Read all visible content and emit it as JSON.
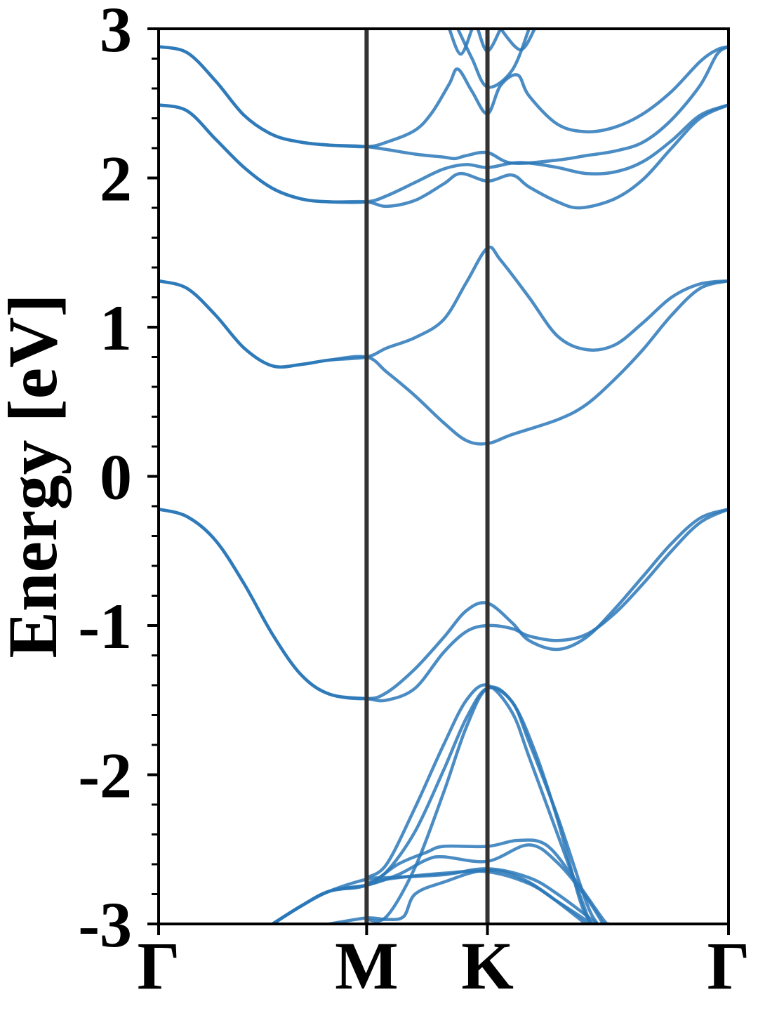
{
  "chart_data": {
    "type": "line",
    "title": "",
    "xlabel": "",
    "ylabel": "Energy [eV]",
    "ylim": [
      -3,
      3
    ],
    "yticks": [
      -3,
      -2,
      -1,
      0,
      1,
      2,
      3
    ],
    "ytick_labels": [
      "-3",
      "-2",
      "-1",
      "0",
      "1",
      "2",
      "3"
    ],
    "yminor_step": 0.2,
    "xlim": [
      0,
      1
    ],
    "kpath": [
      {
        "label": "Γ",
        "x": 0.0
      },
      {
        "label": "M",
        "x": 0.365
      },
      {
        "label": "K",
        "x": 0.577
      },
      {
        "label": "Γ",
        "x": 1.0
      }
    ],
    "grid": false,
    "legend": "none",
    "colors": {
      "bands": "#2a78b8",
      "kpoint_lines": "#333333",
      "axes": "#000000"
    },
    "series": [
      {
        "values": [
          [
            0.0,
            2.88
          ],
          [
            0.05,
            2.84
          ],
          [
            0.1,
            2.65
          ],
          [
            0.15,
            2.42
          ],
          [
            0.2,
            2.29
          ],
          [
            0.25,
            2.24
          ],
          [
            0.3,
            2.22
          ],
          [
            0.365,
            2.21
          ],
          [
            0.45,
            2.16
          ],
          [
            0.5,
            2.14
          ],
          [
            0.52,
            2.13
          ],
          [
            0.54,
            2.15
          ],
          [
            0.577,
            2.17
          ],
          [
            0.62,
            2.1
          ],
          [
            0.7,
            2.12
          ],
          [
            0.75,
            2.15
          ],
          [
            0.8,
            2.18
          ],
          [
            0.85,
            2.24
          ],
          [
            0.9,
            2.39
          ],
          [
            0.95,
            2.62
          ],
          [
            0.98,
            2.83
          ],
          [
            1.0,
            2.88
          ]
        ]
      },
      {
        "values": [
          [
            0.0,
            2.88
          ],
          [
            0.05,
            2.84
          ],
          [
            0.1,
            2.65
          ],
          [
            0.15,
            2.42
          ],
          [
            0.2,
            2.29
          ],
          [
            0.25,
            2.24
          ],
          [
            0.3,
            2.22
          ],
          [
            0.365,
            2.21
          ],
          [
            0.4,
            2.24
          ],
          [
            0.45,
            2.32
          ],
          [
            0.48,
            2.44
          ],
          [
            0.51,
            2.63
          ],
          [
            0.525,
            2.73
          ],
          [
            0.55,
            2.58
          ],
          [
            0.577,
            2.43
          ],
          [
            0.6,
            2.62
          ],
          [
            0.63,
            2.69
          ],
          [
            0.65,
            2.55
          ],
          [
            0.7,
            2.36
          ],
          [
            0.75,
            2.31
          ],
          [
            0.8,
            2.34
          ],
          [
            0.85,
            2.43
          ],
          [
            0.9,
            2.58
          ],
          [
            0.95,
            2.78
          ],
          [
            0.98,
            2.86
          ],
          [
            1.0,
            2.88
          ]
        ]
      },
      {
        "values": [
          [
            0.0,
            2.49
          ],
          [
            0.05,
            2.45
          ],
          [
            0.1,
            2.26
          ],
          [
            0.15,
            2.07
          ],
          [
            0.2,
            1.93
          ],
          [
            0.25,
            1.86
          ],
          [
            0.3,
            1.84
          ],
          [
            0.365,
            1.84
          ],
          [
            0.4,
            1.88
          ],
          [
            0.45,
            1.97
          ],
          [
            0.5,
            2.06
          ],
          [
            0.54,
            2.09
          ],
          [
            0.577,
            2.07
          ],
          [
            0.62,
            2.1
          ],
          [
            0.65,
            2.1
          ],
          [
            0.7,
            2.07
          ],
          [
            0.75,
            2.03
          ],
          [
            0.8,
            2.04
          ],
          [
            0.85,
            2.11
          ],
          [
            0.9,
            2.25
          ],
          [
            0.95,
            2.42
          ],
          [
            1.0,
            2.49
          ]
        ]
      },
      {
        "values": [
          [
            0.0,
            2.49
          ],
          [
            0.05,
            2.45
          ],
          [
            0.1,
            2.26
          ],
          [
            0.15,
            2.07
          ],
          [
            0.2,
            1.93
          ],
          [
            0.25,
            1.86
          ],
          [
            0.3,
            1.84
          ],
          [
            0.365,
            1.84
          ],
          [
            0.4,
            1.81
          ],
          [
            0.45,
            1.85
          ],
          [
            0.5,
            1.96
          ],
          [
            0.53,
            2.03
          ],
          [
            0.577,
            1.98
          ],
          [
            0.62,
            2.02
          ],
          [
            0.65,
            1.94
          ],
          [
            0.7,
            1.84
          ],
          [
            0.74,
            1.8
          ],
          [
            0.8,
            1.86
          ],
          [
            0.85,
            1.99
          ],
          [
            0.9,
            2.2
          ],
          [
            0.95,
            2.4
          ],
          [
            1.0,
            2.49
          ]
        ]
      },
      {
        "values": [
          [
            0.0,
            1.31
          ],
          [
            0.05,
            1.26
          ],
          [
            0.1,
            1.08
          ],
          [
            0.15,
            0.86
          ],
          [
            0.2,
            0.74
          ],
          [
            0.25,
            0.75
          ],
          [
            0.3,
            0.78
          ],
          [
            0.365,
            0.8
          ],
          [
            0.4,
            0.86
          ],
          [
            0.45,
            0.93
          ],
          [
            0.5,
            1.05
          ],
          [
            0.54,
            1.3
          ],
          [
            0.577,
            1.53
          ],
          [
            0.6,
            1.45
          ],
          [
            0.65,
            1.2
          ],
          [
            0.7,
            0.94
          ],
          [
            0.75,
            0.85
          ],
          [
            0.8,
            0.88
          ],
          [
            0.85,
            1.03
          ],
          [
            0.9,
            1.2
          ],
          [
            0.95,
            1.29
          ],
          [
            1.0,
            1.31
          ]
        ]
      },
      {
        "values": [
          [
            0.0,
            1.31
          ],
          [
            0.05,
            1.26
          ],
          [
            0.1,
            1.08
          ],
          [
            0.15,
            0.86
          ],
          [
            0.2,
            0.74
          ],
          [
            0.25,
            0.75
          ],
          [
            0.3,
            0.78
          ],
          [
            0.365,
            0.8
          ],
          [
            0.4,
            0.7
          ],
          [
            0.45,
            0.54
          ],
          [
            0.5,
            0.36
          ],
          [
            0.54,
            0.24
          ],
          [
            0.577,
            0.22
          ],
          [
            0.62,
            0.28
          ],
          [
            0.7,
            0.38
          ],
          [
            0.75,
            0.48
          ],
          [
            0.8,
            0.65
          ],
          [
            0.85,
            0.85
          ],
          [
            0.9,
            1.08
          ],
          [
            0.95,
            1.26
          ],
          [
            1.0,
            1.31
          ]
        ]
      },
      {
        "values": [
          [
            0.0,
            -0.22
          ],
          [
            0.05,
            -0.27
          ],
          [
            0.1,
            -0.43
          ],
          [
            0.15,
            -0.72
          ],
          [
            0.2,
            -1.06
          ],
          [
            0.25,
            -1.33
          ],
          [
            0.3,
            -1.46
          ],
          [
            0.365,
            -1.49
          ],
          [
            0.4,
            -1.45
          ],
          [
            0.45,
            -1.29
          ],
          [
            0.5,
            -1.08
          ],
          [
            0.54,
            -0.9
          ],
          [
            0.577,
            -0.85
          ],
          [
            0.62,
            -0.98
          ],
          [
            0.65,
            -1.1
          ],
          [
            0.7,
            -1.16
          ],
          [
            0.75,
            -1.08
          ],
          [
            0.8,
            -0.89
          ],
          [
            0.85,
            -0.67
          ],
          [
            0.9,
            -0.45
          ],
          [
            0.95,
            -0.28
          ],
          [
            1.0,
            -0.22
          ]
        ]
      },
      {
        "values": [
          [
            0.0,
            -0.22
          ],
          [
            0.05,
            -0.27
          ],
          [
            0.1,
            -0.43
          ],
          [
            0.15,
            -0.72
          ],
          [
            0.2,
            -1.06
          ],
          [
            0.25,
            -1.33
          ],
          [
            0.3,
            -1.46
          ],
          [
            0.365,
            -1.49
          ],
          [
            0.4,
            -1.5
          ],
          [
            0.45,
            -1.42
          ],
          [
            0.5,
            -1.18
          ],
          [
            0.54,
            -1.04
          ],
          [
            0.577,
            -1.0
          ],
          [
            0.62,
            -1.02
          ],
          [
            0.65,
            -1.07
          ],
          [
            0.7,
            -1.1
          ],
          [
            0.75,
            -1.06
          ],
          [
            0.8,
            -0.92
          ],
          [
            0.85,
            -0.72
          ],
          [
            0.9,
            -0.5
          ],
          [
            0.95,
            -0.31
          ],
          [
            1.0,
            -0.22
          ]
        ]
      },
      {
        "values": [
          [
            0.365,
            -2.69
          ],
          [
            0.4,
            -2.6
          ],
          [
            0.45,
            -2.22
          ],
          [
            0.5,
            -1.8
          ],
          [
            0.54,
            -1.5
          ],
          [
            0.577,
            -1.4
          ],
          [
            0.62,
            -1.58
          ],
          [
            0.65,
            -1.88
          ],
          [
            0.7,
            -2.4
          ],
          [
            0.75,
            -2.92
          ],
          [
            0.757,
            -3.0
          ]
        ]
      },
      {
        "values": [
          [
            0.365,
            -2.73
          ],
          [
            0.4,
            -2.65
          ],
          [
            0.45,
            -2.38
          ],
          [
            0.5,
            -1.97
          ],
          [
            0.54,
            -1.62
          ],
          [
            0.577,
            -1.42
          ],
          [
            0.62,
            -1.51
          ],
          [
            0.65,
            -1.78
          ],
          [
            0.7,
            -2.28
          ],
          [
            0.75,
            -2.85
          ],
          [
            0.77,
            -3.0
          ]
        ]
      },
      {
        "values": [
          [
            0.365,
            -2.97
          ],
          [
            0.4,
            -2.95
          ],
          [
            0.45,
            -2.62
          ],
          [
            0.5,
            -2.12
          ],
          [
            0.54,
            -1.68
          ],
          [
            0.577,
            -1.42
          ],
          [
            0.62,
            -1.51
          ],
          [
            0.66,
            -1.84
          ],
          [
            0.7,
            -2.3
          ],
          [
            0.74,
            -2.85
          ],
          [
            0.76,
            -3.0
          ]
        ]
      },
      {
        "values": [
          [
            0.2,
            -3.0
          ],
          [
            0.25,
            -2.88
          ],
          [
            0.3,
            -2.78
          ],
          [
            0.365,
            -2.74
          ],
          [
            0.42,
            -2.67
          ],
          [
            0.47,
            -2.57
          ],
          [
            0.5,
            -2.55
          ],
          [
            0.577,
            -2.58
          ],
          [
            0.65,
            -2.47
          ],
          [
            0.7,
            -2.59
          ],
          [
            0.75,
            -2.82
          ],
          [
            0.78,
            -3.0
          ]
        ]
      },
      {
        "values": [
          [
            0.2,
            -3.0
          ],
          [
            0.25,
            -2.88
          ],
          [
            0.3,
            -2.78
          ],
          [
            0.365,
            -2.74
          ],
          [
            0.42,
            -2.6
          ],
          [
            0.47,
            -2.52
          ],
          [
            0.5,
            -2.48
          ],
          [
            0.577,
            -2.48
          ],
          [
            0.63,
            -2.44
          ],
          [
            0.68,
            -2.47
          ],
          [
            0.73,
            -2.7
          ],
          [
            0.78,
            -2.97
          ],
          [
            0.79,
            -3.0
          ]
        ]
      },
      {
        "values": [
          [
            0.2,
            -3.0
          ],
          [
            0.25,
            -2.88
          ],
          [
            0.3,
            -2.78
          ],
          [
            0.365,
            -2.74
          ],
          [
            0.4,
            -2.7
          ],
          [
            0.5,
            -2.66
          ],
          [
            0.577,
            -2.65
          ],
          [
            0.65,
            -2.73
          ],
          [
            0.7,
            -2.85
          ],
          [
            0.76,
            -3.0
          ]
        ]
      },
      {
        "values": [
          [
            0.2,
            -3.0
          ],
          [
            0.25,
            -2.88
          ],
          [
            0.3,
            -2.78
          ],
          [
            0.365,
            -2.7
          ],
          [
            0.4,
            -2.69
          ],
          [
            0.5,
            -2.67
          ],
          [
            0.577,
            -2.63
          ],
          [
            0.65,
            -2.69
          ],
          [
            0.7,
            -2.8
          ],
          [
            0.77,
            -3.0
          ]
        ]
      },
      {
        "values": [
          [
            0.3,
            -3.0
          ],
          [
            0.365,
            -2.96
          ],
          [
            0.4,
            -2.97
          ],
          [
            0.43,
            -2.95
          ],
          [
            0.45,
            -2.8
          ],
          [
            0.5,
            -2.72
          ],
          [
            0.577,
            -2.64
          ],
          [
            0.65,
            -2.72
          ],
          [
            0.75,
            -3.0
          ]
        ]
      },
      {
        "values": [
          [
            0.51,
            3.0
          ],
          [
            0.53,
            2.83
          ],
          [
            0.55,
            3.0
          ]
        ]
      },
      {
        "values": [
          [
            0.525,
            3.0
          ],
          [
            0.55,
            2.8
          ],
          [
            0.577,
            2.61
          ],
          [
            0.62,
            2.72
          ],
          [
            0.65,
            3.0
          ]
        ]
      },
      {
        "values": [
          [
            0.56,
            3.0
          ],
          [
            0.577,
            2.85
          ],
          [
            0.6,
            3.0
          ]
        ]
      },
      {
        "values": [
          [
            0.6,
            3.0
          ],
          [
            0.635,
            2.86
          ],
          [
            0.66,
            3.0
          ]
        ]
      }
    ]
  }
}
